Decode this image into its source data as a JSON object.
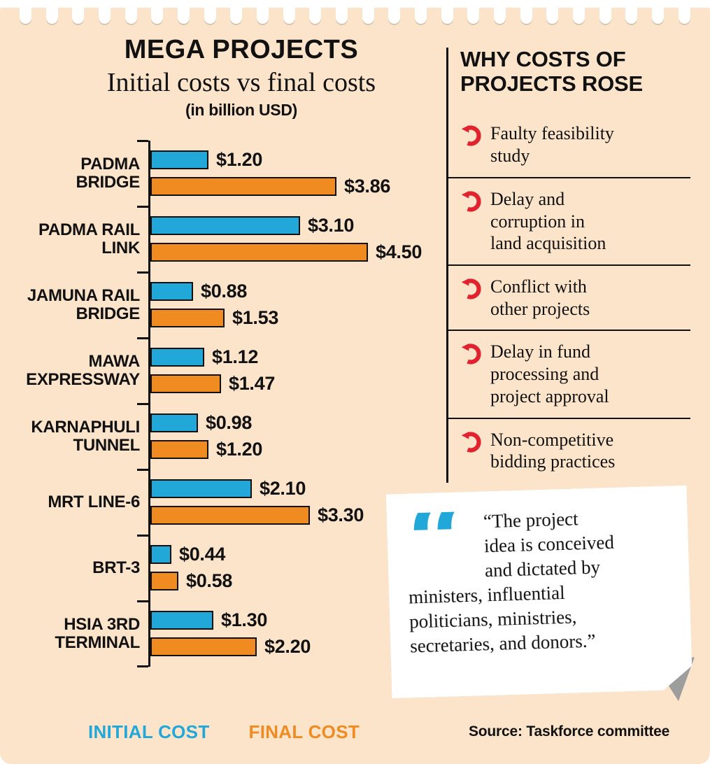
{
  "page": {
    "title": "MEGA PROJECTS",
    "subtitle": "Initial costs vs final costs",
    "unit_note": "(in billion USD)",
    "source": "Source: Taskforce committee",
    "background_color": "#fce4ca"
  },
  "legend": {
    "initial_label": "INITIAL COST",
    "final_label": "FINAL COST"
  },
  "chart_data": {
    "type": "bar",
    "orientation": "horizontal",
    "title": "MEGA PROJECTS",
    "subtitle": "Initial costs vs final costs",
    "unit": "billion USD",
    "xlim": [
      0,
      4.6
    ],
    "grid": false,
    "legend_position": "bottom",
    "categories": [
      "PADMA BRIDGE",
      "PADMA RAIL LINK",
      "JAMUNA RAIL BRIDGE",
      "MAWA EXPRESSWAY",
      "KARNAPHULI TUNNEL",
      "MRT LINE-6",
      "BRT-3",
      "HSIA 3RD TERMINAL"
    ],
    "categories_display": [
      "PADMA\nBRIDGE",
      "PADMA RAIL\nLINK",
      "JAMUNA RAIL\nBRIDGE",
      "MAWA\nEXPRESSWAY",
      "KARNAPHULI\nTUNNEL",
      "MRT LINE-6",
      "BRT-3",
      "HSIA 3RD\nTERMINAL"
    ],
    "series": [
      {
        "name": "INITIAL COST",
        "color": "#21a7d8",
        "values": [
          1.2,
          3.1,
          0.88,
          1.12,
          0.98,
          2.1,
          0.44,
          1.3
        ]
      },
      {
        "name": "FINAL COST",
        "color": "#f08b21",
        "values": [
          3.86,
          4.5,
          1.53,
          1.47,
          1.2,
          3.3,
          0.58,
          2.2
        ]
      }
    ],
    "value_labels": [
      [
        "$1.20",
        "$3.86"
      ],
      [
        "$3.10",
        "$4.50"
      ],
      [
        "$0.88",
        "$1.53"
      ],
      [
        "$1.12",
        "$1.47"
      ],
      [
        "$0.98",
        "$1.20"
      ],
      [
        "$2.10",
        "$3.30"
      ],
      [
        "$0.44",
        "$0.58"
      ],
      [
        "$1.30",
        "$2.20"
      ]
    ]
  },
  "reasons": {
    "heading": "WHY COSTS OF\nPROJECTS ROSE",
    "icon_color": "#e0232e",
    "items": [
      {
        "text": "Faulty feasibility\nstudy"
      },
      {
        "text": "Delay and\ncorruption in\nland acquisition"
      },
      {
        "text": "Conflict with\nother projects"
      },
      {
        "text": "Delay in fund\nprocessing and\nproject approval"
      },
      {
        "text": "Non-competitive\nbidding practices"
      }
    ]
  },
  "quote": {
    "mark": "“",
    "color": "#21a7d8",
    "text": "“The project\nidea is conceived\nand dictated by\nministers, influential\npoliticians, ministries,\nsecretaries, and donors.”"
  }
}
